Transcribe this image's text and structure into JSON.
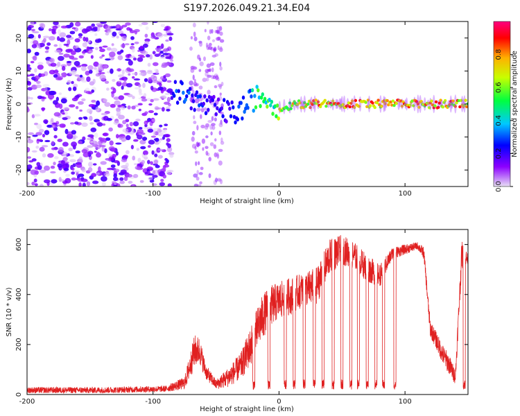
{
  "title": "S197.2026.049.21.34.E04",
  "chart_data": [
    {
      "type": "heatmap",
      "xlabel": "Height of straight line (km)",
      "ylabel": "Frequency (Hz)",
      "xlim": [
        -200,
        150
      ],
      "ylim": [
        -25,
        25
      ],
      "xticks": [
        -200,
        -100,
        0,
        100
      ],
      "yticks": [
        20,
        10,
        0,
        -10,
        -20
      ],
      "colorbar": {
        "label": "Normalized spectral amplitude",
        "range": [
          0,
          1
        ],
        "ticks": [
          0.0,
          0.2,
          0.4,
          0.6,
          0.8
        ],
        "colormap": [
          "#e8e0f4",
          "#8c00ff",
          "#0000ff",
          "#00c8ff",
          "#00ff40",
          "#c8ff00",
          "#ffb000",
          "#ff0000",
          "#ff0080"
        ]
      },
      "ridge": {
        "x": [
          -85,
          -75,
          -65,
          -55,
          -45,
          -35,
          -28,
          -22,
          -18,
          -10,
          -5,
          0,
          20,
          40,
          60,
          80,
          100,
          120,
          140,
          150
        ],
        "freq": [
          4,
          3,
          1,
          -1,
          -2,
          -3,
          -1,
          1,
          2,
          2,
          0,
          -1,
          0,
          0,
          0,
          0,
          0,
          0,
          0,
          0
        ],
        "amplitude": [
          0.3,
          0.35,
          0.3,
          0.25,
          0.25,
          0.3,
          0.35,
          0.45,
          0.55,
          0.6,
          0.55,
          0.7,
          0.85,
          0.9,
          0.9,
          0.9,
          0.9,
          0.9,
          0.9,
          0.85
        ]
      },
      "noise_region_x": [
        -200,
        -85
      ],
      "noise_amplitude_range": [
        0.0,
        0.2
      ]
    },
    {
      "type": "line",
      "xlabel": "Height of straight line (km)",
      "ylabel": "SNR (10 * v/v)",
      "xlim": [
        -200,
        150
      ],
      "ylim": [
        0,
        660
      ],
      "xticks": [
        -200,
        -100,
        0,
        100
      ],
      "yticks": [
        0,
        200,
        400,
        600
      ],
      "color": "#e02020",
      "envelope": {
        "x": [
          -200,
          -140,
          -90,
          -75,
          -70,
          -67,
          -63,
          -58,
          -50,
          -40,
          -30,
          -22,
          -15,
          -10,
          -5,
          0,
          5,
          10,
          15,
          20,
          30,
          40,
          50,
          60,
          70,
          80,
          90,
          100,
          110,
          115,
          120,
          125,
          130,
          135,
          140,
          145,
          150
        ],
        "high": [
          30,
          30,
          35,
          70,
          180,
          240,
          230,
          120,
          60,
          110,
          170,
          280,
          380,
          420,
          440,
          450,
          460,
          470,
          480,
          490,
          510,
          620,
          640,
          610,
          560,
          520,
          590,
          600,
          610,
          590,
          300,
          250,
          200,
          160,
          100,
          620,
          560
        ],
        "low": [
          5,
          5,
          10,
          20,
          70,
          110,
          120,
          60,
          20,
          30,
          60,
          120,
          200,
          250,
          280,
          300,
          310,
          320,
          340,
          350,
          360,
          480,
          520,
          500,
          450,
          430,
          540,
          560,
          580,
          540,
          230,
          180,
          120,
          80,
          40,
          500,
          520
        ]
      },
      "dropouts_x": [
        -20,
        -8,
        5,
        12,
        20,
        28,
        35,
        43,
        50,
        57,
        63,
        70,
        77,
        83,
        92,
        147
      ]
    }
  ]
}
